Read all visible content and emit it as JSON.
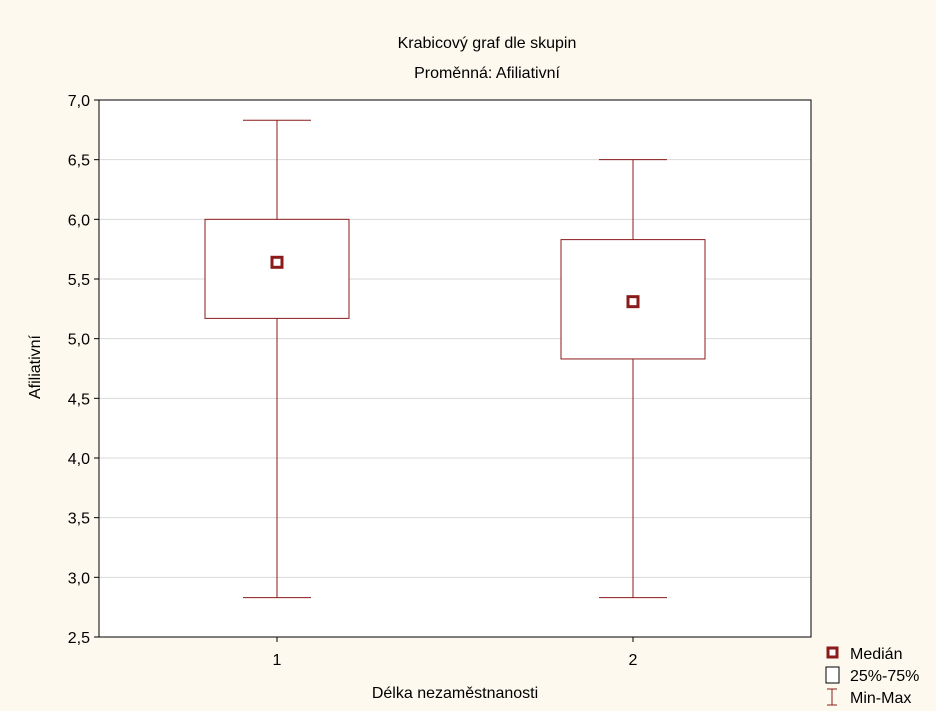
{
  "chart_data": {
    "type": "boxplot",
    "title": "Krabicový graf dle skupin",
    "subtitle": "Proměnná: Afiliativní",
    "xlabel": "Délka nezaměstnanosti",
    "ylabel": "Afiliativní",
    "categories": [
      "1",
      "2"
    ],
    "ylim": [
      2.5,
      7.0
    ],
    "yticks": [
      "2,5",
      "3,0",
      "3,5",
      "4,0",
      "4,5",
      "5,0",
      "5,5",
      "6,0",
      "6,5",
      "7,0"
    ],
    "ytick_values": [
      2.5,
      3.0,
      3.5,
      4.0,
      4.5,
      5.0,
      5.5,
      6.0,
      6.5,
      7.0
    ],
    "grid": true,
    "series": [
      {
        "category": "1",
        "min": 2.83,
        "q1": 5.17,
        "median": 5.64,
        "q3": 6.0,
        "max": 6.83
      },
      {
        "category": "2",
        "min": 2.83,
        "q1": 4.83,
        "median": 5.31,
        "q3": 5.83,
        "max": 6.5
      }
    ],
    "legend": {
      "placement": "bottom-right",
      "entries": [
        "Medián",
        "25%-75%",
        "Min-Max"
      ]
    },
    "colors": {
      "line": "#8b1a1a",
      "median_fill": "#8b1a1a",
      "grid": "#d9d9d9",
      "background": "#fdf9ef",
      "plot_background": "#ffffff"
    }
  }
}
